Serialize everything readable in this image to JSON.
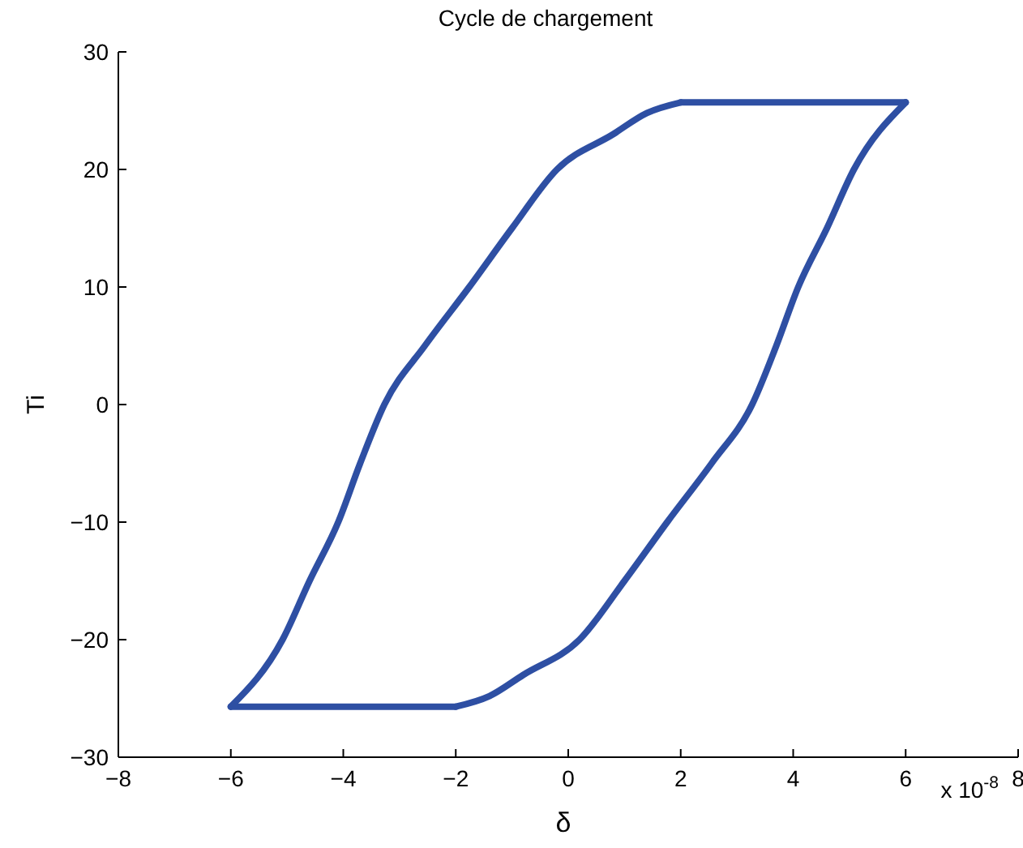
{
  "chart_data": {
    "type": "line",
    "title": "Cycle de chargement",
    "xlabel": "δ",
    "ylabel": "Ti",
    "annotations": [
      "x 10$^{-8}$"
    ],
    "xlim": [
      -8,
      8
    ],
    "xticks": [
      -8,
      -6,
      -4,
      -2,
      0,
      2,
      4,
      6,
      8
    ],
    "ylim": [
      -30,
      30
    ],
    "yticks": [
      -30,
      -20,
      -10,
      0,
      10,
      20,
      30
    ],
    "series": [
      {
        "color": "#2e4fa3",
        "x": [
          -6,
          -5.08,
          -4.6,
          -4.09,
          -3.7,
          -3.27,
          -2.55,
          -1.76,
          -1,
          -0.2,
          0.8,
          1.4,
          2
        ],
        "values": [
          -25.7,
          -20,
          -15,
          -10,
          -5,
          0,
          5,
          10,
          15,
          20,
          23,
          24.8,
          25.7
        ]
      },
      {
        "color": "#2e4fa3",
        "x": [
          2,
          6
        ],
        "values": [
          25.7,
          25.7
        ]
      },
      {
        "color": "#2e4fa3",
        "x": [
          -2,
          -1.4,
          -0.8,
          0.2,
          1,
          1.76,
          2.55,
          3.27,
          3.7,
          4.09,
          4.6,
          5.08,
          6
        ],
        "values": [
          -25.7,
          -24.8,
          -23,
          -20,
          -15,
          -10,
          -5,
          0,
          5,
          10,
          15,
          20,
          25.7
        ]
      },
      {
        "color": "#2e4fa3",
        "x": [
          -6,
          -2
        ],
        "values": [
          -25.7,
          -25.7
        ]
      }
    ]
  }
}
